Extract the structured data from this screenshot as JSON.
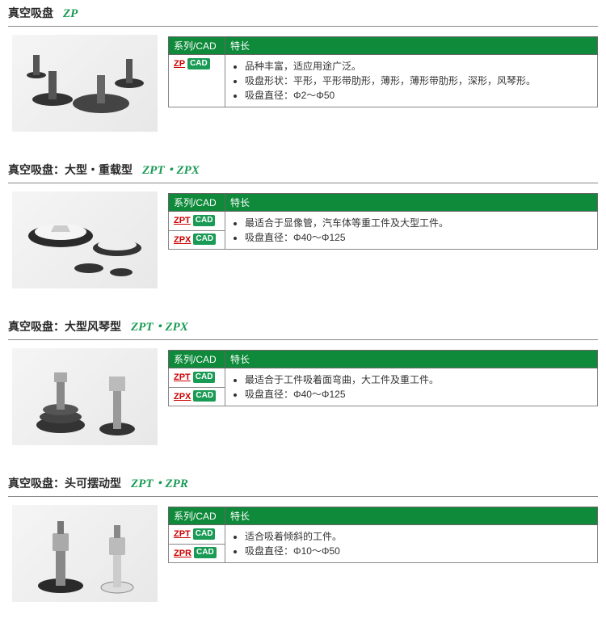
{
  "colors": {
    "header_bg": "#0e8a3a",
    "header_text": "#ffffff",
    "series_link": "#cc0000",
    "cad_badge_bg": "#1a9b55",
    "title_code_color": "#1a9b55",
    "border_color": "#888888"
  },
  "table_headers": {
    "series_cad": "系列/CAD",
    "features": "特长"
  },
  "cad_label": "CAD",
  "sections": [
    {
      "title_main": "真空吸盘",
      "title_code": "ZP",
      "rows": [
        {
          "series": "ZP"
        }
      ],
      "features": [
        "品种丰富，适应用途广泛。",
        "吸盘形状：平形，平形带肋形，薄形，薄形带肋形，深形，风琴形。",
        "吸盘直径：Φ2～Φ50"
      ]
    },
    {
      "title_main": "真空吸盘：大型・重载型",
      "title_code": "ZPT・ZPX",
      "rows": [
        {
          "series": "ZPT"
        },
        {
          "series": "ZPX"
        }
      ],
      "features": [
        "最适合于显像管，汽车体等重工件及大型工件。",
        "吸盘直径：Φ40～Φ125"
      ]
    },
    {
      "title_main": "真空吸盘：大型风琴型",
      "title_code": "ZPT・ZPX",
      "rows": [
        {
          "series": "ZPT"
        },
        {
          "series": "ZPX"
        }
      ],
      "features": [
        "最适合于工件吸着面弯曲，大工件及重工件。",
        "吸盘直径：Φ40～Φ125"
      ]
    },
    {
      "title_main": "真空吸盘：头可摆动型",
      "title_code": "ZPT・ZPR",
      "rows": [
        {
          "series": "ZPT"
        },
        {
          "series": "ZPR"
        }
      ],
      "features": [
        "适合吸着倾斜的工件。",
        "吸盘直径：Φ10～Φ50"
      ]
    }
  ]
}
